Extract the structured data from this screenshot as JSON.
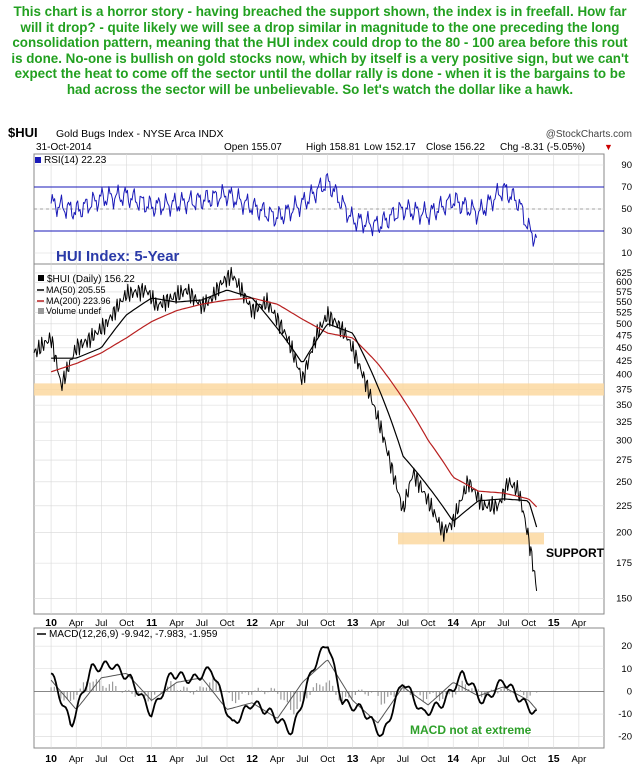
{
  "commentary": "This chart is a horror story - having breached the support shown, the index is in freefall. How far will it drop? - quite likely we will see a drop similar in magnitude to the one preceding the long consolidation pattern, meaning that the HUI index could drop to the 80 - 100 area before this rout is done. No-one is bullish on gold stocks now, which by itself is a very positive sign, but we can't expect the heat to come off the sector until the dollar rally is done - when it is the bargains to be had across the sector will be unbelievable. So let's watch the dollar like a hawk.",
  "header": {
    "symbol": "$HUI",
    "name": "Gold Bugs Index - NYSE Arca INDX",
    "date": "31-Oct-2014",
    "open": "Open 155.07",
    "high": "High 158.81",
    "low": "Low 152.17",
    "close": "Close 156.22",
    "change": "Chg -8.31 (-5.05%)",
    "change_marker": "▼",
    "watermark": "@StockCharts.com"
  },
  "colors": {
    "commentary": "#22a020",
    "price": "#000000",
    "ma50": "#000000",
    "ma200": "#b82020",
    "rsi": "#1a1ab8",
    "band": "#fcd8a0",
    "annotation_blue": "#2a3aa8",
    "annotation_green": "#2ea02a",
    "grid": "#d8d8d8",
    "histogram": "#9a9a9a"
  },
  "chart_data": [
    {
      "panel": "rsi",
      "type": "line",
      "title": "RSI(14) 22.23",
      "y_ticks": [
        90,
        70,
        50,
        30,
        10
      ],
      "ylim": [
        0,
        100
      ],
      "reference_lines": [
        70,
        30
      ],
      "series": [
        {
          "name": "RSI(14)",
          "x": [
            2010.0,
            2010.25,
            2010.5,
            2010.75,
            2011.0,
            2011.25,
            2011.5,
            2011.75,
            2012.0,
            2012.25,
            2012.5,
            2012.75,
            2013.0,
            2013.25,
            2013.5,
            2013.75,
            2014.0,
            2014.25,
            2014.5,
            2014.65,
            2014.75,
            2014.83
          ],
          "y": [
            55,
            48,
            60,
            62,
            52,
            55,
            58,
            63,
            52,
            42,
            55,
            75,
            40,
            35,
            50,
            45,
            58,
            46,
            68,
            56,
            32,
            22
          ]
        }
      ]
    },
    {
      "panel": "price",
      "type": "line",
      "legend": [
        "$HUI (Daily) 156.22",
        "MA(50) 205.55",
        "MA(200) 223.96",
        "Volume undef"
      ],
      "annotations": [
        "HUI Index: 5-Year",
        "SUPPORT"
      ],
      "y_ticks": [
        625,
        600,
        575,
        550,
        525,
        500,
        475,
        450,
        425,
        400,
        375,
        350,
        325,
        300,
        275,
        250,
        225,
        200,
        175,
        150
      ],
      "ylim": [
        140,
        650
      ],
      "scale": "log",
      "bands": [
        {
          "label": "375",
          "range": [
            365,
            385
          ]
        },
        {
          "label": "SUPPORT",
          "range": [
            190,
            200
          ]
        }
      ],
      "series": [
        {
          "name": "$HUI (Daily)",
          "x": [
            2009.83,
            2010.0,
            2010.1,
            2010.25,
            2010.4,
            2010.55,
            2010.75,
            2010.95,
            2011.05,
            2011.2,
            2011.35,
            2011.5,
            2011.6,
            2011.7,
            2011.8,
            2012.0,
            2012.15,
            2012.35,
            2012.5,
            2012.65,
            2012.75,
            2012.85,
            2012.95,
            2013.1,
            2013.25,
            2013.4,
            2013.5,
            2013.6,
            2013.75,
            2013.9,
            2014.0,
            2014.15,
            2014.3,
            2014.45,
            2014.55,
            2014.65,
            2014.75,
            2014.83
          ],
          "y": [
            440,
            470,
            380,
            450,
            470,
            500,
            570,
            580,
            540,
            560,
            580,
            540,
            560,
            600,
            620,
            530,
            550,
            470,
            390,
            480,
            520,
            500,
            470,
            400,
            330,
            260,
            220,
            260,
            230,
            200,
            210,
            250,
            225,
            225,
            250,
            240,
            195,
            156
          ]
        },
        {
          "name": "MA(50)",
          "x": [
            2010.0,
            2010.25,
            2010.5,
            2010.75,
            2011.0,
            2011.25,
            2011.5,
            2011.75,
            2012.0,
            2012.25,
            2012.5,
            2012.75,
            2013.0,
            2013.25,
            2013.5,
            2013.75,
            2014.0,
            2014.25,
            2014.5,
            2014.75,
            2014.83
          ],
          "y": [
            430,
            430,
            450,
            520,
            560,
            550,
            555,
            580,
            560,
            490,
            420,
            500,
            480,
            380,
            280,
            245,
            210,
            230,
            232,
            230,
            205
          ]
        },
        {
          "name": "MA(200)",
          "x": [
            2010.0,
            2010.25,
            2010.5,
            2010.75,
            2011.0,
            2011.25,
            2011.5,
            2011.75,
            2012.0,
            2012.25,
            2012.5,
            2012.75,
            2013.0,
            2013.25,
            2013.5,
            2013.75,
            2014.0,
            2014.25,
            2014.5,
            2014.75,
            2014.83
          ],
          "y": [
            405,
            420,
            440,
            470,
            505,
            530,
            545,
            555,
            560,
            545,
            510,
            480,
            470,
            420,
            360,
            300,
            255,
            240,
            238,
            232,
            224
          ]
        }
      ]
    },
    {
      "panel": "macd",
      "type": "line",
      "title": "MACD(12,26,9) -9.942, -7.983, -1.959",
      "annotations": [
        "MACD not at extreme"
      ],
      "y_ticks": [
        20,
        10,
        0,
        -10,
        -20
      ],
      "ylim": [
        -25,
        28
      ],
      "series": [
        {
          "name": "MACD(12,26,9)",
          "x": [
            2010.0,
            2010.2,
            2010.4,
            2010.6,
            2010.8,
            2011.0,
            2011.2,
            2011.4,
            2011.6,
            2011.8,
            2012.0,
            2012.2,
            2012.4,
            2012.6,
            2012.75,
            2012.9,
            2013.1,
            2013.3,
            2013.5,
            2013.7,
            2013.9,
            2014.1,
            2014.3,
            2014.5,
            2014.7,
            2014.83
          ],
          "y": [
            8,
            -15,
            10,
            12,
            5,
            -10,
            8,
            5,
            10,
            -15,
            -5,
            -10,
            -18,
            10,
            22,
            -5,
            -8,
            -20,
            5,
            -10,
            -5,
            8,
            -5,
            5,
            -5,
            -10
          ]
        },
        {
          "name": "Signal",
          "x": [
            2010.0,
            2010.25,
            2010.5,
            2010.75,
            2011.0,
            2011.25,
            2011.5,
            2011.75,
            2012.0,
            2012.25,
            2012.5,
            2012.75,
            2013.0,
            2013.25,
            2013.5,
            2013.75,
            2014.0,
            2014.25,
            2014.5,
            2014.75,
            2014.83
          ],
          "y": [
            5,
            -8,
            6,
            8,
            -4,
            4,
            6,
            -8,
            -5,
            -12,
            4,
            14,
            -4,
            -14,
            2,
            -6,
            4,
            -2,
            2,
            -4,
            -8
          ]
        }
      ]
    }
  ],
  "x_axis": {
    "labels": [
      "10",
      "Apr",
      "Jul",
      "Oct",
      "11",
      "Apr",
      "Jul",
      "Oct",
      "12",
      "Apr",
      "Jul",
      "Oct",
      "13",
      "Apr",
      "Jul",
      "Oct",
      "14",
      "Apr",
      "Jul",
      "Oct",
      "15",
      "Apr"
    ],
    "values": [
      2010.0,
      2010.25,
      2010.5,
      2010.75,
      2011.0,
      2011.25,
      2011.5,
      2011.75,
      2012.0,
      2012.25,
      2012.5,
      2012.75,
      2013.0,
      2013.25,
      2013.5,
      2013.75,
      2014.0,
      2014.25,
      2014.5,
      2014.75,
      2015.0,
      2015.25
    ],
    "range": [
      2009.83,
      2015.5
    ]
  }
}
